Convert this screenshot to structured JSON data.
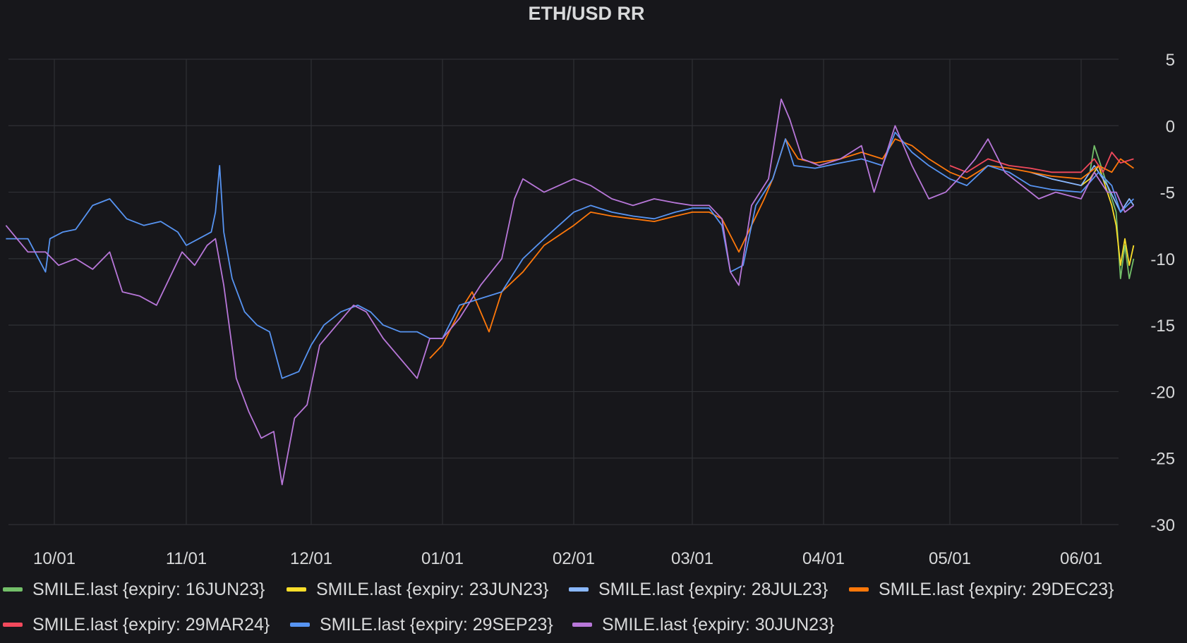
{
  "colors": {
    "background": "#17171b",
    "grid": "#2f3035",
    "text": "#d8d9da"
  },
  "chart_data": {
    "type": "line",
    "title": "ETH/USD RR",
    "xlabel": "",
    "ylabel": "",
    "x_ticks": [
      "10/01",
      "11/01",
      "12/01",
      "01/01",
      "02/01",
      "03/01",
      "04/01",
      "05/01",
      "06/01"
    ],
    "y_ticks": [
      5,
      0,
      -5,
      -10,
      -15,
      -20,
      -25,
      -30
    ],
    "ylim": [
      -30,
      5
    ],
    "y_axis_side": "right",
    "grid": true,
    "legend_position": "bottom",
    "series": [
      {
        "name": "SMILE.last {expiry: 16JUN23}",
        "color": "#73bf69",
        "points": [
          [
            "06/01",
            -4.0
          ],
          [
            "06/03",
            -3.5
          ],
          [
            "06/04",
            -1.5
          ],
          [
            "06/05",
            -2.5
          ],
          [
            "06/06",
            -3.5
          ],
          [
            "06/07",
            -4.5
          ],
          [
            "06/08",
            -5.5
          ],
          [
            "06/09",
            -6.5
          ],
          [
            "06/10",
            -11.5
          ],
          [
            "06/11",
            -9.0
          ],
          [
            "06/12",
            -11.5
          ],
          [
            "06/13",
            -10.0
          ]
        ]
      },
      {
        "name": "SMILE.last {expiry: 23JUN23}",
        "color": "#fade2a",
        "points": [
          [
            "06/01",
            -4.5
          ],
          [
            "06/03",
            -4.0
          ],
          [
            "06/05",
            -3.0
          ],
          [
            "06/07",
            -5.0
          ],
          [
            "06/08",
            -6.0
          ],
          [
            "06/09",
            -7.5
          ],
          [
            "06/10",
            -10.5
          ],
          [
            "06/11",
            -8.5
          ],
          [
            "06/12",
            -10.5
          ],
          [
            "06/13",
            -9.0
          ]
        ]
      },
      {
        "name": "SMILE.last {expiry: 28JUL23}",
        "color": "#8ab8ff",
        "points": [
          [
            "05/20",
            -3.5
          ],
          [
            "05/25",
            -4.0
          ],
          [
            "06/01",
            -4.5
          ],
          [
            "06/04",
            -3.0
          ],
          [
            "06/07",
            -4.5
          ],
          [
            "06/10",
            -6.5
          ],
          [
            "06/12",
            -5.5
          ],
          [
            "06/13",
            -6.0
          ]
        ]
      },
      {
        "name": "SMILE.last {expiry: 29DEC23}",
        "color": "#ff780a",
        "points": [
          [
            "12/29",
            -17.5
          ],
          [
            "01/01",
            -16.5
          ],
          [
            "01/05",
            -14.0
          ],
          [
            "01/08",
            -12.5
          ],
          [
            "01/12",
            -15.5
          ],
          [
            "01/15",
            -12.5
          ],
          [
            "01/20",
            -11.0
          ],
          [
            "01/25",
            -9.0
          ],
          [
            "02/01",
            -7.5
          ],
          [
            "02/05",
            -6.5
          ],
          [
            "02/10",
            -6.8
          ],
          [
            "02/15",
            -7.0
          ],
          [
            "02/20",
            -7.2
          ],
          [
            "02/25",
            -6.8
          ],
          [
            "03/01",
            -6.5
          ],
          [
            "03/05",
            -6.5
          ],
          [
            "03/08",
            -7.0
          ],
          [
            "03/12",
            -9.5
          ],
          [
            "03/15",
            -7.5
          ],
          [
            "03/18",
            -5.5
          ],
          [
            "03/20",
            -4.0
          ],
          [
            "03/23",
            -1.0
          ],
          [
            "03/26",
            -2.5
          ],
          [
            "03/30",
            -2.8
          ],
          [
            "04/05",
            -2.5
          ],
          [
            "04/10",
            -2.0
          ],
          [
            "04/15",
            -2.5
          ],
          [
            "04/18",
            -1.0
          ],
          [
            "04/22",
            -1.5
          ],
          [
            "04/26",
            -2.5
          ],
          [
            "05/01",
            -3.5
          ],
          [
            "05/05",
            -4.0
          ],
          [
            "05/10",
            -3.0
          ],
          [
            "05/15",
            -3.2
          ],
          [
            "05/20",
            -3.5
          ],
          [
            "05/25",
            -3.8
          ],
          [
            "06/01",
            -4.0
          ],
          [
            "06/05",
            -3.0
          ],
          [
            "06/08",
            -3.5
          ],
          [
            "06/10",
            -2.5
          ],
          [
            "06/13",
            -3.2
          ]
        ]
      },
      {
        "name": "SMILE.last {expiry: 29MAR24}",
        "color": "#f2495c",
        "points": [
          [
            "05/01",
            -3.0
          ],
          [
            "05/05",
            -3.5
          ],
          [
            "05/10",
            -2.5
          ],
          [
            "05/15",
            -3.0
          ],
          [
            "05/20",
            -3.2
          ],
          [
            "05/25",
            -3.5
          ],
          [
            "06/01",
            -3.5
          ],
          [
            "06/04",
            -2.5
          ],
          [
            "06/06",
            -3.5
          ],
          [
            "06/08",
            -2.0
          ],
          [
            "06/10",
            -2.8
          ],
          [
            "06/13",
            -2.5
          ]
        ]
      },
      {
        "name": "SMILE.last {expiry: 29SEP23}",
        "color": "#5794f2",
        "points": [
          [
            "09/20",
            -8.5
          ],
          [
            "09/25",
            -8.5
          ],
          [
            "09/29",
            -11.0
          ],
          [
            "09/30",
            -8.5
          ],
          [
            "10/03",
            -8.0
          ],
          [
            "10/06",
            -7.8
          ],
          [
            "10/10",
            -6.0
          ],
          [
            "10/14",
            -5.5
          ],
          [
            "10/18",
            -7.0
          ],
          [
            "10/22",
            -7.5
          ],
          [
            "10/26",
            -7.2
          ],
          [
            "10/30",
            -8.0
          ],
          [
            "11/01",
            -9.0
          ],
          [
            "11/04",
            -8.5
          ],
          [
            "11/07",
            -8.0
          ],
          [
            "11/08",
            -6.5
          ],
          [
            "11/09",
            -3.0
          ],
          [
            "11/10",
            -8.0
          ],
          [
            "11/12",
            -11.5
          ],
          [
            "11/15",
            -14.0
          ],
          [
            "11/18",
            -15.0
          ],
          [
            "11/21",
            -15.5
          ],
          [
            "11/24",
            -19.0
          ],
          [
            "11/28",
            -18.5
          ],
          [
            "12/01",
            -16.5
          ],
          [
            "12/04",
            -15.0
          ],
          [
            "12/08",
            -14.0
          ],
          [
            "12/12",
            -13.5
          ],
          [
            "12/15",
            -14.0
          ],
          [
            "12/18",
            -15.0
          ],
          [
            "12/22",
            -15.5
          ],
          [
            "12/26",
            -15.5
          ],
          [
            "12/29",
            -16.0
          ],
          [
            "01/01",
            -16.0
          ],
          [
            "01/05",
            -13.5
          ],
          [
            "01/10",
            -13.0
          ],
          [
            "01/15",
            -12.5
          ],
          [
            "01/20",
            -10.0
          ],
          [
            "01/25",
            -8.5
          ],
          [
            "02/01",
            -6.5
          ],
          [
            "02/05",
            -6.0
          ],
          [
            "02/10",
            -6.5
          ],
          [
            "02/15",
            -6.8
          ],
          [
            "02/20",
            -7.0
          ],
          [
            "02/25",
            -6.5
          ],
          [
            "03/01",
            -6.2
          ],
          [
            "03/05",
            -6.2
          ],
          [
            "03/08",
            -7.5
          ],
          [
            "03/10",
            -11.0
          ],
          [
            "03/13",
            -10.5
          ],
          [
            "03/16",
            -6.0
          ],
          [
            "03/20",
            -4.0
          ],
          [
            "03/23",
            -1.0
          ],
          [
            "03/25",
            -3.0
          ],
          [
            "03/30",
            -3.2
          ],
          [
            "04/05",
            -2.8
          ],
          [
            "04/10",
            -2.5
          ],
          [
            "04/15",
            -3.0
          ],
          [
            "04/18",
            -0.5
          ],
          [
            "04/22",
            -2.0
          ],
          [
            "04/26",
            -3.0
          ],
          [
            "05/01",
            -4.0
          ],
          [
            "05/05",
            -4.5
          ],
          [
            "05/10",
            -3.0
          ],
          [
            "05/15",
            -3.5
          ],
          [
            "05/20",
            -4.5
          ],
          [
            "05/25",
            -4.8
          ],
          [
            "06/01",
            -5.0
          ],
          [
            "06/05",
            -3.5
          ],
          [
            "06/08",
            -4.5
          ],
          [
            "06/10",
            -6.5
          ],
          [
            "06/13",
            -5.5
          ]
        ]
      },
      {
        "name": "SMILE.last {expiry: 30JUN23}",
        "color": "#b877d9",
        "points": [
          [
            "09/20",
            -7.5
          ],
          [
            "09/25",
            -9.5
          ],
          [
            "09/29",
            -9.5
          ],
          [
            "10/02",
            -10.5
          ],
          [
            "10/06",
            -10.0
          ],
          [
            "10/10",
            -10.8
          ],
          [
            "10/14",
            -9.5
          ],
          [
            "10/17",
            -12.5
          ],
          [
            "10/21",
            -12.8
          ],
          [
            "10/25",
            -13.5
          ],
          [
            "10/28",
            -11.5
          ],
          [
            "10/31",
            -9.5
          ],
          [
            "11/03",
            -10.5
          ],
          [
            "11/06",
            -9.0
          ],
          [
            "11/08",
            -8.5
          ],
          [
            "11/10",
            -12.0
          ],
          [
            "11/13",
            -19.0
          ],
          [
            "11/16",
            -21.5
          ],
          [
            "11/19",
            -23.5
          ],
          [
            "11/22",
            -23.0
          ],
          [
            "11/24",
            -27.0
          ],
          [
            "11/27",
            -22.0
          ],
          [
            "11/30",
            -21.0
          ],
          [
            "12/03",
            -16.5
          ],
          [
            "12/07",
            -15.0
          ],
          [
            "12/11",
            -13.5
          ],
          [
            "12/14",
            -14.0
          ],
          [
            "12/18",
            -16.0
          ],
          [
            "12/22",
            -17.5
          ],
          [
            "12/26",
            -19.0
          ],
          [
            "12/29",
            -16.0
          ],
          [
            "01/01",
            -16.0
          ],
          [
            "01/05",
            -14.5
          ],
          [
            "01/10",
            -12.0
          ],
          [
            "01/15",
            -10.0
          ],
          [
            "01/18",
            -5.5
          ],
          [
            "01/20",
            -4.0
          ],
          [
            "01/25",
            -5.0
          ],
          [
            "02/01",
            -4.0
          ],
          [
            "02/05",
            -4.5
          ],
          [
            "02/10",
            -5.5
          ],
          [
            "02/15",
            -6.0
          ],
          [
            "02/20",
            -5.5
          ],
          [
            "02/25",
            -5.8
          ],
          [
            "03/01",
            -6.0
          ],
          [
            "03/05",
            -6.0
          ],
          [
            "03/08",
            -7.0
          ],
          [
            "03/10",
            -11.0
          ],
          [
            "03/12",
            -12.0
          ],
          [
            "03/15",
            -6.0
          ],
          [
            "03/19",
            -4.0
          ],
          [
            "03/22",
            2.0
          ],
          [
            "03/24",
            0.5
          ],
          [
            "03/27",
            -2.5
          ],
          [
            "03/31",
            -3.0
          ],
          [
            "04/05",
            -2.5
          ],
          [
            "04/10",
            -1.5
          ],
          [
            "04/13",
            -5.0
          ],
          [
            "04/16",
            -2.0
          ],
          [
            "04/18",
            0.0
          ],
          [
            "04/22",
            -3.0
          ],
          [
            "04/26",
            -5.5
          ],
          [
            "04/30",
            -5.0
          ],
          [
            "05/03",
            -4.0
          ],
          [
            "05/07",
            -2.5
          ],
          [
            "05/10",
            -1.0
          ],
          [
            "05/14",
            -3.5
          ],
          [
            "05/18",
            -4.5
          ],
          [
            "05/22",
            -5.5
          ],
          [
            "05/26",
            -5.0
          ],
          [
            "06/01",
            -5.5
          ],
          [
            "06/04",
            -3.5
          ],
          [
            "06/07",
            -5.0
          ],
          [
            "06/09",
            -5.0
          ],
          [
            "06/11",
            -6.5
          ],
          [
            "06/13",
            -6.0
          ]
        ]
      }
    ]
  }
}
